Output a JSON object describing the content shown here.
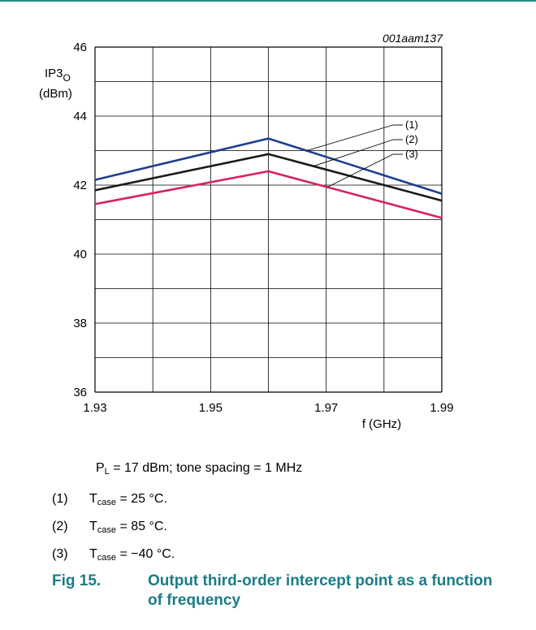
{
  "figure_code": "001aam137",
  "chart_data": {
    "type": "line",
    "x": [
      1.93,
      1.96,
      1.99
    ],
    "series": [
      {
        "name": "(1)",
        "values": [
          42.15,
          43.35,
          41.75
        ],
        "color": "#1f3f8f"
      },
      {
        "name": "(2)",
        "values": [
          41.85,
          42.9,
          41.55
        ],
        "color": "#1a1a1a"
      },
      {
        "name": "(3)",
        "values": [
          41.45,
          42.4,
          41.05
        ],
        "color": "#d6245a"
      }
    ],
    "xlabel": "f (GHz)",
    "ylabel_main": "IP3",
    "ylabel_sub": "O",
    "ylabel_unit": "(dBm)",
    "xlim": [
      1.93,
      1.99
    ],
    "ylim": [
      36,
      46
    ],
    "xticks": [
      1.93,
      1.94,
      1.95,
      1.96,
      1.97,
      1.98,
      1.99
    ],
    "yticks": [
      36,
      37,
      38,
      39,
      40,
      41,
      42,
      43,
      44,
      45,
      46
    ],
    "xtick_labels": [
      "1.93",
      "",
      "1.95",
      "",
      "1.97",
      "",
      "1.99"
    ],
    "ytick_labels": [
      "36",
      "",
      "38",
      "",
      "40",
      "",
      "42",
      "",
      "44",
      "",
      "46"
    ],
    "grid": true,
    "legend_placement": "callouts at right"
  },
  "condition": {
    "p": "P",
    "p_sub": "L",
    "rest": " = 17 dBm; tone spacing = 1 MHz"
  },
  "notes": [
    {
      "num": "(1)",
      "t": "T",
      "sub": "case",
      "value": " = 25 °C."
    },
    {
      "num": "(2)",
      "t": "T",
      "sub": "case",
      "value": " = 85 °C."
    },
    {
      "num": "(3)",
      "t": "T",
      "sub": "case",
      "value": " = −40 °C."
    }
  ],
  "caption": {
    "number": "Fig 15.",
    "text": "Output third-order intercept point as a function of frequency"
  },
  "colors": {
    "accent": "#1c7c86",
    "rule": "#2a8c8c"
  }
}
